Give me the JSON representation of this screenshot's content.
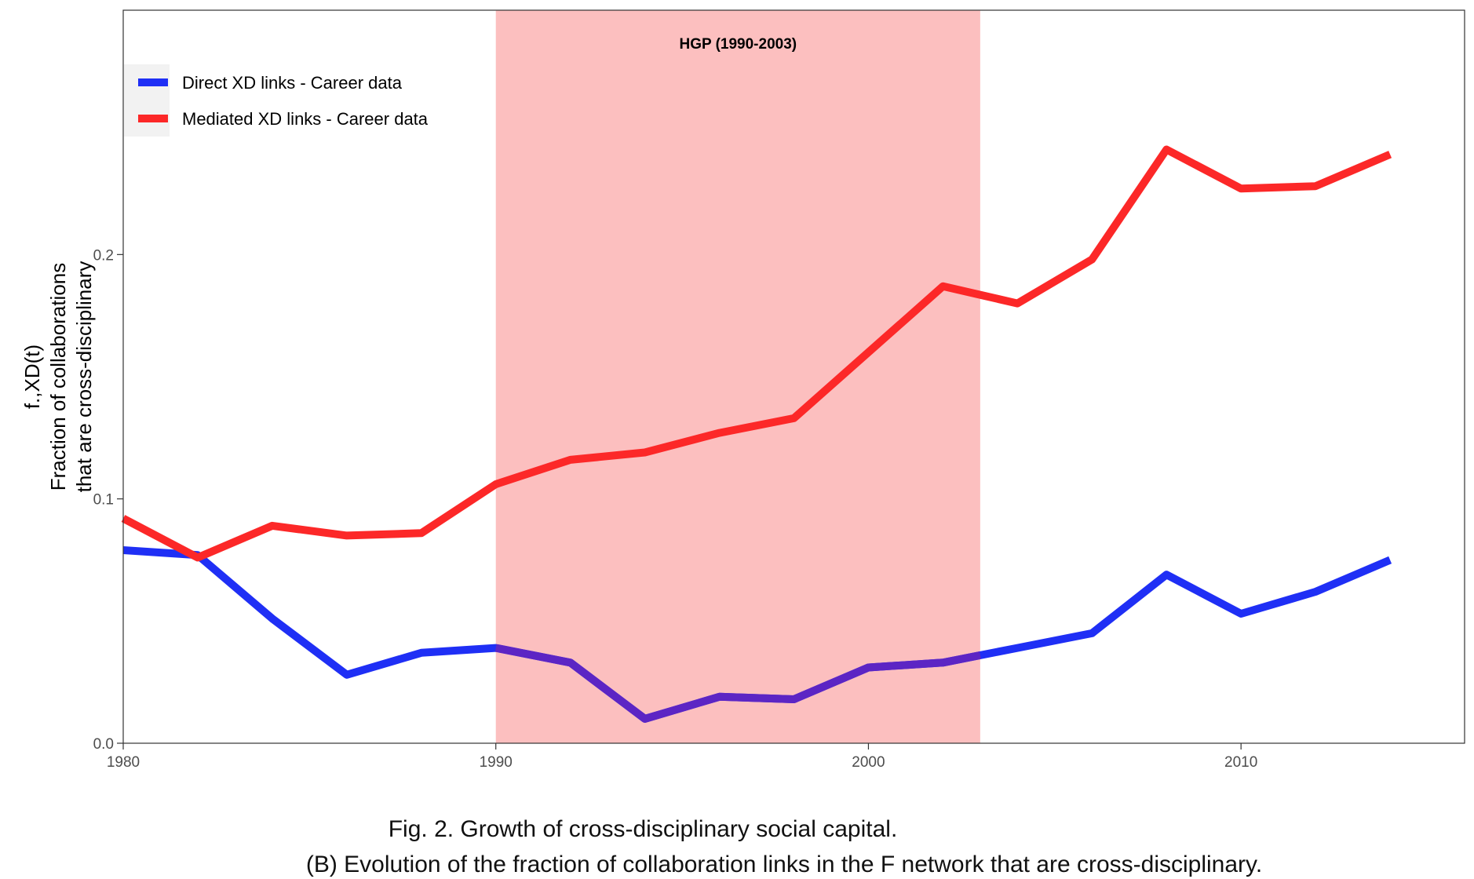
{
  "chart_data": {
    "type": "line",
    "title": "",
    "xlabel": "",
    "ylabel_lines": [
      "f.,XD(t)",
      "Fraction of collaborations",
      "that are cross-disciplinary"
    ],
    "xlim": [
      1980,
      2016
    ],
    "ylim": [
      0,
      0.3
    ],
    "x_ticks": [
      1980,
      1990,
      2000,
      2010
    ],
    "x_tick_labels": [
      "1980",
      "1990",
      "2000",
      "2010"
    ],
    "y_ticks": [
      0,
      0.1,
      0.2
    ],
    "y_tick_labels": [
      "0.0",
      "0.1",
      "0.2"
    ],
    "grid": false,
    "legend_position": "top-left",
    "shaded_region": {
      "x_start": 1990,
      "x_end": 2003,
      "label": "HGP (1990-2003)",
      "color": "#fcbfbf"
    },
    "series": [
      {
        "name": "Direct XD links - Career data",
        "color": "#1f2ff5",
        "shaded_color": "#5c25c4",
        "x": [
          1980,
          1982,
          1984,
          1986,
          1988,
          1990,
          1992,
          1994,
          1996,
          1998,
          2000,
          2002,
          2004,
          2006,
          2008,
          2010,
          2012,
          2014
        ],
        "values": [
          0.079,
          0.077,
          0.051,
          0.028,
          0.037,
          0.039,
          0.033,
          0.01,
          0.019,
          0.018,
          0.031,
          0.033,
          0.039,
          0.045,
          0.069,
          0.053,
          0.062,
          0.075
        ]
      },
      {
        "name": "Mediated XD links - Career data",
        "color": "#fc2828",
        "x": [
          1980,
          1982,
          1984,
          1986,
          1988,
          1990,
          1992,
          1994,
          1996,
          1998,
          2000,
          2002,
          2004,
          2006,
          2008,
          2010,
          2012,
          2014
        ],
        "values": [
          0.092,
          0.076,
          0.089,
          0.085,
          0.086,
          0.106,
          0.116,
          0.119,
          0.127,
          0.133,
          0.16,
          0.187,
          0.18,
          0.198,
          0.243,
          0.227,
          0.228,
          0.241
        ]
      }
    ]
  },
  "caption": {
    "title": "Fig. 2. Growth of cross-disciplinary social capital.",
    "subtitle": "(B) Evolution of the fraction of collaboration links in the F network that are cross-disciplinary."
  }
}
